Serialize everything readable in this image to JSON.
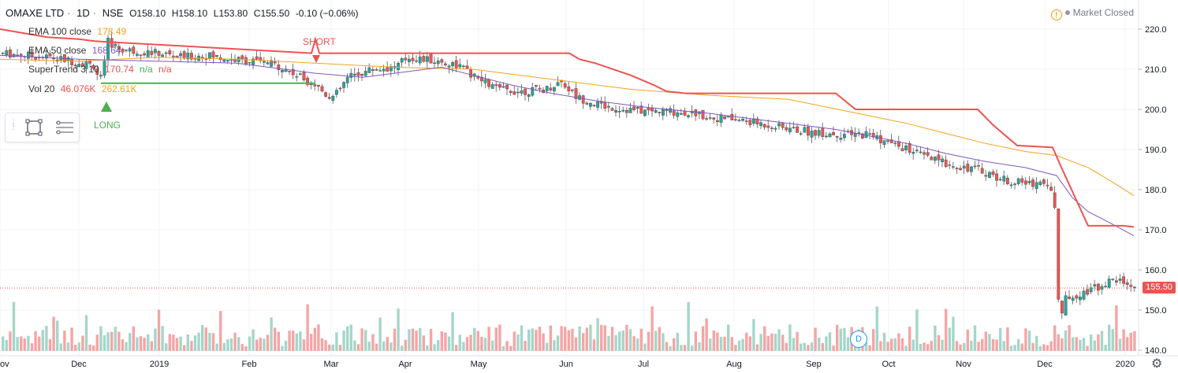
{
  "header": {
    "symbol": "OMAXE LTD",
    "interval": "1D",
    "exchange": "NSE",
    "open": "O158.10",
    "high": "H158.10",
    "low": "L153.80",
    "close": "C155.50",
    "change": "-0.10 (−0.06%)",
    "market_status": "Market Closed"
  },
  "indicators": {
    "ema100": {
      "label": "EMA 100 close",
      "value": "178.49",
      "color": "#f7a21b"
    },
    "ema50": {
      "label": "EMA 50 close",
      "value": "168.64",
      "color": "#7e57c2"
    },
    "supertrend": {
      "label": "SuperTrend 3 10",
      "value": "170.74",
      "na1": "n/a",
      "na2": "n/a",
      "color": "#ef5350"
    },
    "vol": {
      "label": "Vol 20",
      "value": "46.076K",
      "ma": "262.61K"
    }
  },
  "signals": {
    "short": "SHORT",
    "long": "LONG"
  },
  "last_price": "155.50",
  "event_marker": "D",
  "colors": {
    "up": "#26a69a",
    "down": "#ef5350",
    "supertrend_up": "#4caf50",
    "supertrend_down": "#ef5350",
    "ema100": "#f7a21b",
    "ema50": "#7e57c2",
    "vol_up": "#a5d6c9",
    "vol_down": "#f5a5a5"
  },
  "chart_data": {
    "type": "candlestick",
    "price_axis": {
      "ticks": [
        140,
        150,
        160,
        170,
        180,
        190,
        200,
        210,
        220
      ],
      "range": [
        139,
        225
      ]
    },
    "time_axis": {
      "ticks": [
        "ov",
        "Dec",
        "2019",
        "Feb",
        "Mar",
        "Apr",
        "May",
        "Jun",
        "Jul",
        "Aug",
        "Sep",
        "Oct",
        "Nov",
        "Dec",
        "2020"
      ]
    },
    "close_path": [
      [
        0,
        214
      ],
      [
        30,
        213.5
      ],
      [
        60,
        213
      ],
      [
        90,
        212
      ],
      [
        118,
        211
      ],
      [
        125,
        207
      ],
      [
        130,
        210
      ],
      [
        135,
        217
      ],
      [
        150,
        215
      ],
      [
        170,
        214.5
      ],
      [
        200,
        214
      ],
      [
        230,
        213
      ],
      [
        260,
        213.5
      ],
      [
        290,
        212.5
      ],
      [
        320,
        212
      ],
      [
        350,
        211
      ],
      [
        380,
        208
      ],
      [
        400,
        206
      ],
      [
        410,
        204
      ],
      [
        422,
        203
      ],
      [
        440,
        208
      ],
      [
        470,
        210
      ],
      [
        500,
        210.5
      ],
      [
        515,
        213
      ],
      [
        550,
        212
      ],
      [
        580,
        211
      ],
      [
        600,
        208
      ],
      [
        630,
        205
      ],
      [
        660,
        204.5
      ],
      [
        690,
        205
      ],
      [
        710,
        207
      ],
      [
        730,
        203
      ],
      [
        760,
        201
      ],
      [
        790,
        200
      ],
      [
        820,
        199.5
      ],
      [
        850,
        199.5
      ],
      [
        880,
        199
      ],
      [
        900,
        198
      ],
      [
        930,
        197.5
      ],
      [
        960,
        196.5
      ],
      [
        990,
        195.5
      ],
      [
        1020,
        194.5
      ],
      [
        1050,
        194
      ],
      [
        1080,
        193.5
      ],
      [
        1100,
        194
      ],
      [
        1120,
        192
      ],
      [
        1150,
        190
      ],
      [
        1180,
        187.5
      ],
      [
        1210,
        186
      ],
      [
        1240,
        185
      ],
      [
        1270,
        182.5
      ],
      [
        1300,
        181.5
      ],
      [
        1320,
        182
      ],
      [
        1335,
        180
      ],
      [
        1342,
        146
      ],
      [
        1350,
        153
      ],
      [
        1380,
        155
      ],
      [
        1405,
        157
      ],
      [
        1420,
        157.5
      ],
      [
        1438,
        155.5
      ]
    ],
    "ema100": [
      [
        0,
        212.5
      ],
      [
        100,
        212
      ],
      [
        200,
        213
      ],
      [
        300,
        212.5
      ],
      [
        400,
        211.5
      ],
      [
        500,
        210.5
      ],
      [
        600,
        210
      ],
      [
        700,
        207.5
      ],
      [
        800,
        205
      ],
      [
        900,
        203.5
      ],
      [
        1000,
        202.5
      ],
      [
        1050,
        200.5
      ],
      [
        1100,
        198.5
      ],
      [
        1150,
        196.5
      ],
      [
        1200,
        194
      ],
      [
        1250,
        191.5
      ],
      [
        1300,
        189.5
      ],
      [
        1340,
        188.5
      ],
      [
        1380,
        185.5
      ],
      [
        1410,
        182
      ],
      [
        1438,
        178.5
      ]
    ],
    "ema50": [
      [
        0,
        213.5
      ],
      [
        100,
        212.5
      ],
      [
        200,
        212
      ],
      [
        300,
        211.5
      ],
      [
        400,
        209
      ],
      [
        460,
        208
      ],
      [
        500,
        209
      ],
      [
        560,
        210.5
      ],
      [
        600,
        208.5
      ],
      [
        650,
        206
      ],
      [
        700,
        204
      ],
      [
        760,
        202
      ],
      [
        820,
        200.5
      ],
      [
        900,
        199
      ],
      [
        960,
        197.5
      ],
      [
        1000,
        196.5
      ],
      [
        1060,
        195
      ],
      [
        1100,
        193.5
      ],
      [
        1150,
        191.5
      ],
      [
        1200,
        189
      ],
      [
        1250,
        187
      ],
      [
        1300,
        185.5
      ],
      [
        1340,
        183.5
      ],
      [
        1360,
        178
      ],
      [
        1380,
        174.5
      ],
      [
        1410,
        171.5
      ],
      [
        1438,
        168.5
      ]
    ],
    "supertrend_up": [
      [
        128,
        206.5
      ],
      [
        400,
        206.5
      ]
    ],
    "supertrend_down": [
      [
        0,
        220
      ],
      [
        30,
        219
      ],
      [
        60,
        218
      ],
      [
        100,
        217.5
      ],
      [
        120,
        217
      ],
      [
        395,
        214
      ],
      [
        400,
        217.5
      ],
      [
        405,
        214
      ],
      [
        722,
        214
      ],
      [
        735,
        212.5
      ],
      [
        755,
        211.5
      ],
      [
        770,
        210.5
      ],
      [
        800,
        208.5
      ],
      [
        830,
        206
      ],
      [
        845,
        204.5
      ],
      [
        870,
        204
      ],
      [
        1060,
        204
      ],
      [
        1085,
        200
      ],
      [
        1240,
        200
      ],
      [
        1260,
        196
      ],
      [
        1290,
        191
      ],
      [
        1335,
        190.5
      ],
      [
        1345,
        186
      ],
      [
        1380,
        171
      ],
      [
        1425,
        171
      ],
      [
        1438,
        170.7
      ]
    ],
    "volume_note": "volume histogram in thousands, baseline at bottom pane",
    "volume_max_k": 1000
  }
}
